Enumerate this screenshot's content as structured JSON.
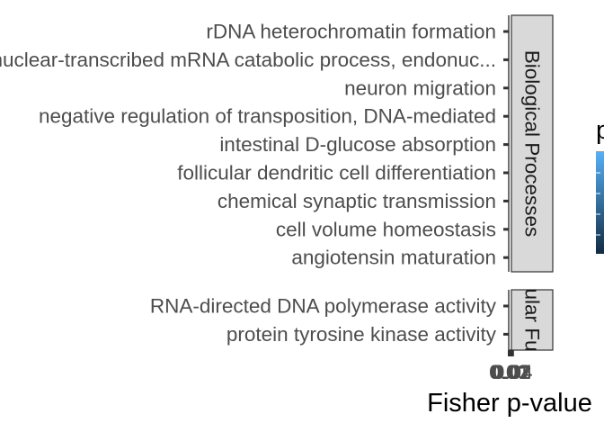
{
  "chart_data": {
    "type": "bar",
    "orientation": "horizontal",
    "xlabel": "Fisher p-value",
    "x_tick_labels": [
      "0.00",
      "0.01",
      "0.02",
      "0.03",
      "0.04"
    ],
    "legend_title": "p",
    "legend_placement": "right",
    "legend_colors": [
      "#56B1F7",
      "#132B43"
    ],
    "facets": [
      {
        "strip_label": "Biological Processes",
        "categories": [
          "rDNA heterochromatin formation",
          "nuclear-transcribed mRNA catabolic process, endonuc...",
          "neuron migration",
          "negative regulation of transposition, DNA-mediated",
          "intestinal D-glucose absorption",
          "follicular dendritic cell differentiation",
          "chemical synaptic transmission",
          "cell volume homeostasis",
          "angiotensin maturation"
        ]
      },
      {
        "strip_label": "Molecular Function",
        "categories": [
          "RNA-directed DNA polymerase activity",
          "protein tyrosine kinase activity"
        ]
      }
    ]
  }
}
